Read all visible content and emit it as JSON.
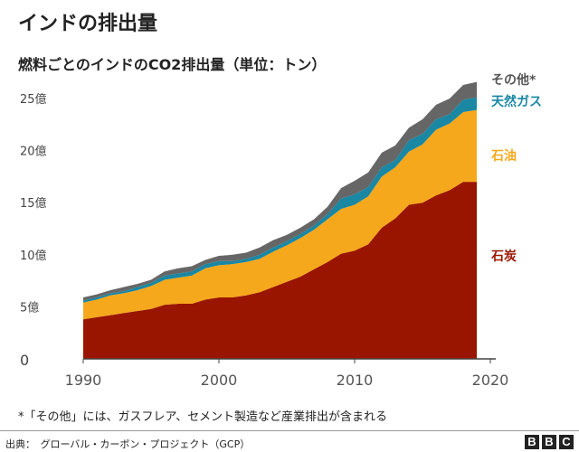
{
  "header": {
    "title": "インドの排出量",
    "subtitle": "燃料ごとのインドのCO2排出量（単位：トン）"
  },
  "chart_data": {
    "type": "area",
    "stacked": true,
    "title": "燃料ごとのインドのCO2排出量（単位：トン）",
    "x": [
      1990,
      1991,
      1992,
      1993,
      1994,
      1995,
      1996,
      1997,
      1998,
      1999,
      2000,
      2001,
      2002,
      2003,
      2004,
      2005,
      2006,
      2007,
      2008,
      2009,
      2010,
      2011,
      2012,
      2013,
      2014,
      2015,
      2016,
      2017,
      2018,
      2019
    ],
    "series": [
      {
        "name": "石炭",
        "color": "#9a1500",
        "values": [
          3.8,
          4.0,
          4.2,
          4.4,
          4.6,
          4.8,
          5.2,
          5.3,
          5.3,
          5.7,
          5.9,
          5.9,
          6.1,
          6.4,
          6.9,
          7.4,
          7.9,
          8.6,
          9.3,
          10.1,
          10.4,
          11.0,
          12.6,
          13.5,
          14.8,
          15.0,
          15.7,
          16.2,
          17.0,
          17.0
        ]
      },
      {
        "name": "石油",
        "color": "#f5a81c",
        "values": [
          1.6,
          1.7,
          1.9,
          1.9,
          2.0,
          2.2,
          2.4,
          2.5,
          2.7,
          3.0,
          3.1,
          3.2,
          3.2,
          3.2,
          3.4,
          3.5,
          3.7,
          3.8,
          4.1,
          4.3,
          4.4,
          4.6,
          4.9,
          4.9,
          5.1,
          5.6,
          6.3,
          6.4,
          6.7,
          6.9
        ]
      },
      {
        "name": "天然ガス",
        "color": "#1a87a3",
        "values": [
          0.2,
          0.2,
          0.2,
          0.2,
          0.3,
          0.3,
          0.4,
          0.4,
          0.4,
          0.4,
          0.4,
          0.3,
          0.3,
          0.4,
          0.4,
          0.4,
          0.4,
          0.4,
          0.5,
          1.0,
          1.0,
          0.9,
          0.9,
          0.7,
          1.1,
          1.0,
          1.0,
          0.9,
          1.2,
          1.2
        ]
      },
      {
        "name": "その他*",
        "color": "#666666",
        "values": [
          0.3,
          0.3,
          0.3,
          0.4,
          0.3,
          0.3,
          0.4,
          0.5,
          0.5,
          0.4,
          0.5,
          0.6,
          0.6,
          0.7,
          0.7,
          0.6,
          0.6,
          0.6,
          0.7,
          1.0,
          1.3,
          1.4,
          1.4,
          1.4,
          1.2,
          1.4,
          1.4,
          1.5,
          1.4,
          1.5
        ]
      }
    ],
    "y_unit": "億トン",
    "ylim": [
      0,
      25
    ],
    "xlim": [
      1990,
      2020
    ],
    "y_ticks": [
      {
        "v": 0,
        "label": "0"
      },
      {
        "v": 5,
        "label": "5億"
      },
      {
        "v": 10,
        "label": "10億"
      },
      {
        "v": 15,
        "label": "15億"
      },
      {
        "v": 20,
        "label": "20億"
      },
      {
        "v": 25,
        "label": "25億"
      }
    ],
    "x_ticks": [
      {
        "v": 1990,
        "label": "1990"
      },
      {
        "v": 2000,
        "label": "2000"
      },
      {
        "v": 2010,
        "label": "2010"
      },
      {
        "v": 2020,
        "label": "2020"
      }
    ],
    "grid": false,
    "legend": "inline-right"
  },
  "footer": {
    "footnote": "*「その他」には、ガスフレア、セメント製造など産業排出が含まれる",
    "source": "出典：　グローバル・カーボン・プロジェクト（GCP）",
    "logo": [
      "B",
      "B",
      "C"
    ]
  }
}
